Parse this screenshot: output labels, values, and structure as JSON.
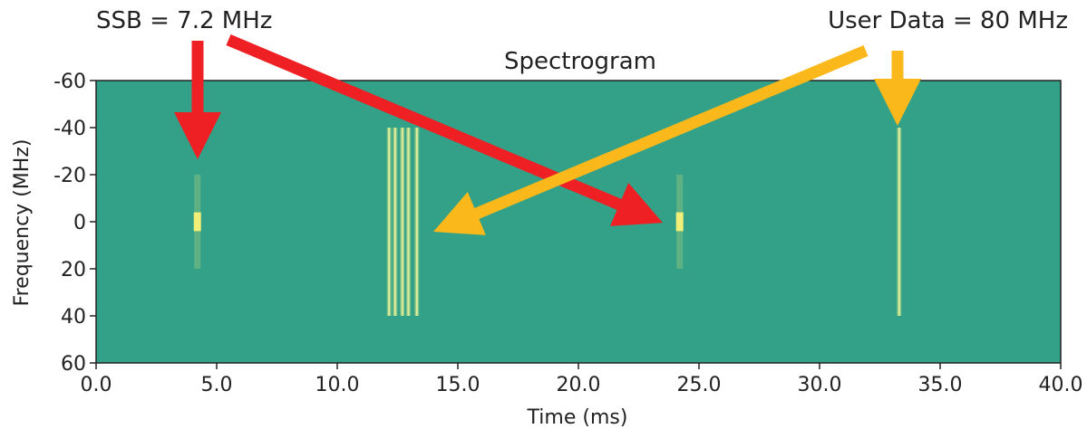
{
  "chart_data": {
    "type": "heatmap",
    "title": "Spectrogram",
    "xlabel": "Time (ms)",
    "ylabel": "Frequency (MHz)",
    "xlim": [
      0,
      40
    ],
    "ylim": [
      -60,
      60
    ],
    "y_inverted": true,
    "xticks": [
      "0.0",
      "5.0",
      "10.0",
      "15.0",
      "20.0",
      "25.0",
      "30.0",
      "35.0",
      "40.0"
    ],
    "yticks": [
      "-60",
      "-40",
      "-20",
      "0",
      "20",
      "40",
      "60"
    ],
    "background_color": "#33a088",
    "grid": false,
    "signals": [
      {
        "kind": "ssb",
        "t": 4.2,
        "f_low": -20,
        "f_high": 20,
        "peak_low": -4,
        "peak_high": 4
      },
      {
        "kind": "ssb",
        "t": 24.2,
        "f_low": -20,
        "f_high": 20,
        "peak_low": -4,
        "peak_high": 4
      },
      {
        "kind": "data",
        "t": 12.15,
        "f_low": -40,
        "f_high": 40
      },
      {
        "kind": "data",
        "t": 12.4,
        "f_low": -40,
        "f_high": 40
      },
      {
        "kind": "data",
        "t": 12.7,
        "f_low": -40,
        "f_high": 40
      },
      {
        "kind": "data",
        "t": 12.95,
        "f_low": -40,
        "f_high": 40
      },
      {
        "kind": "data",
        "t": 13.3,
        "f_low": -40,
        "f_high": 40
      },
      {
        "kind": "data",
        "t": 33.3,
        "f_low": -40,
        "f_high": 40
      }
    ],
    "annotations": [
      {
        "text": "SSB = 7.2 MHz",
        "color": "#ee2024"
      },
      {
        "text": "User Data = 80 MHz",
        "color": "#fbb81a"
      }
    ]
  }
}
